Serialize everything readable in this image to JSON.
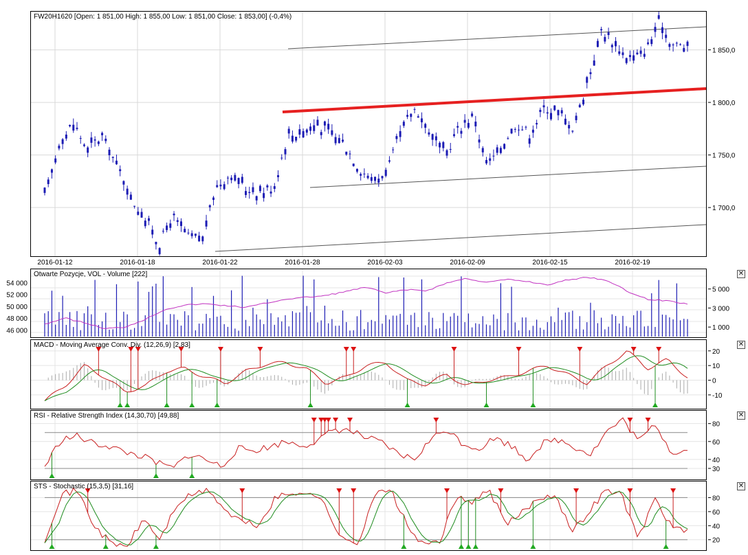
{
  "panels": {
    "price": {
      "title": "FW20H1620 [Open: 1 851,00  High: 1 855,00  Low: 1 851,00  Close: 1 853,00] (-0,4%)",
      "y_ticks": [
        "1 850,0",
        "1 800,0",
        "1 750,0",
        "1 700,0"
      ],
      "x_ticks": [
        "2016-01-12",
        "2016-01-18",
        "2016-01-22",
        "2016-01-28",
        "2016-02-03",
        "2016-02-09",
        "2016-02-15",
        "2016-02-19"
      ]
    },
    "volume": {
      "title": "Otwarte Pozycje, VOL - Volume [222]",
      "left_ticks": [
        "54 000",
        "52 000",
        "50 000",
        "48 000",
        "46 000"
      ],
      "right_ticks": [
        "5 000",
        "3 000",
        "1 000"
      ]
    },
    "macd": {
      "title": "MACD - Moving Average Conv. Div. (12,26,9) [2,83]",
      "right_ticks": [
        "20",
        "10",
        "0",
        "-10"
      ]
    },
    "rsi": {
      "title": "RSI - Relative Strength Index (14,30,70) [49,88]",
      "right_ticks": [
        "80",
        "60",
        "40",
        "30"
      ]
    },
    "sts": {
      "title": "STS - Stochastic (15,3,5) [31,16]",
      "right_ticks": [
        "80",
        "60",
        "40",
        "20"
      ]
    }
  },
  "close_label": "✕",
  "colors": {
    "candles": "#1c1cb4",
    "channel": "#555555",
    "trendline": "#e62020",
    "open_interest": "#c030c0",
    "indicator": "#c81e1e",
    "signal": "#1e8c1e",
    "histogram": "#aaaaaa",
    "sell_marker": "#dd1111",
    "buy_marker": "#22aa22"
  },
  "chart_data": [
    {
      "type": "line",
      "name": "price",
      "title": "FW20H1620 [Open: 1 851,00  High: 1 855,00  Low: 1 851,00  Close: 1 853,00] (-0,4%)",
      "ylim": [
        1655,
        1885
      ],
      "x_ticks": [
        "2016-01-12",
        "2016-01-18",
        "2016-01-22",
        "2016-01-28",
        "2016-02-03",
        "2016-02-09",
        "2016-02-15",
        "2016-02-19"
      ],
      "close_anchors": [
        1710,
        1760,
        1780,
        1755,
        1768,
        1742,
        1710,
        1690,
        1665,
        1690,
        1672,
        1668,
        1720,
        1732,
        1718,
        1715,
        1718,
        1768,
        1772,
        1780,
        1770,
        1760,
        1738,
        1725,
        1735,
        1775,
        1795,
        1770,
        1750,
        1775,
        1788,
        1738,
        1760,
        1780,
        1770,
        1795,
        1790,
        1775,
        1820,
        1870,
        1852,
        1842,
        1848,
        1875,
        1855,
        1853
      ],
      "trendline": [
        [
          1797,
          1812
        ]
      ],
      "open": 1851.0,
      "high": 1855.0,
      "low": 1851.0,
      "close": 1853.0,
      "change_pct": -0.4
    },
    {
      "type": "bar",
      "name": "volume",
      "ylim_left": [
        45000,
        56000
      ],
      "ylim_right": [
        0,
        7000
      ],
      "open_interest_anchors": [
        47000,
        48000,
        47200,
        46200,
        46500,
        47800,
        49500,
        50200,
        50400,
        50100,
        49800,
        50500,
        51200,
        51500,
        51800,
        52500,
        53200,
        52200,
        52800,
        52600,
        53900,
        54700,
        54000,
        54500,
        54200,
        53600,
        54400,
        54900,
        54400,
        52500,
        51200,
        50900,
        50400
      ]
    },
    {
      "type": "line",
      "name": "macd",
      "ylim": [
        -18,
        26
      ]
    },
    {
      "type": "line",
      "name": "rsi",
      "ylim": [
        20,
        92
      ],
      "levels": [
        30,
        70
      ]
    },
    {
      "type": "line",
      "name": "sts",
      "ylim": [
        8,
        100
      ],
      "levels": [
        20,
        80
      ]
    }
  ]
}
